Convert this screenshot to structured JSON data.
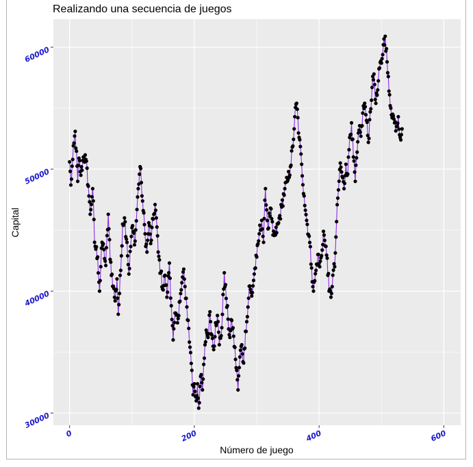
{
  "chart_data": {
    "type": "line",
    "title": "Realizando una secuencia de juegos",
    "xlabel": "Número de juego",
    "ylabel": "Capital",
    "xlim": [
      -26,
      627
    ],
    "ylim": [
      29000,
      62300
    ],
    "x_ticks": [
      0,
      200,
      400,
      600
    ],
    "y_ticks": [
      30000,
      40000,
      50000,
      60000
    ],
    "x_tick_labels": [
      "0",
      "200",
      "400",
      "600"
    ],
    "y_tick_labels": [
      "30000",
      "40000",
      "50000",
      "60000"
    ],
    "grid": true,
    "panel_color": "#ebebeb",
    "line_color": "#8a2be2",
    "point_color": "#000000",
    "tick_label_color": "#1a1acc",
    "series": [
      {
        "anchors": [
          [
            0,
            50600
          ],
          [
            2,
            48700
          ],
          [
            5,
            50800
          ],
          [
            9,
            53100
          ],
          [
            13,
            49000
          ],
          [
            15,
            50900
          ],
          [
            18,
            49500
          ],
          [
            22,
            51000
          ],
          [
            26,
            50800
          ],
          [
            30,
            48600
          ],
          [
            33,
            46300
          ],
          [
            37,
            48400
          ],
          [
            40,
            44000
          ],
          [
            45,
            42800
          ],
          [
            48,
            40000
          ],
          [
            52,
            44000
          ],
          [
            55,
            43400
          ],
          [
            58,
            42100
          ],
          [
            62,
            46300
          ],
          [
            65,
            42600
          ],
          [
            70,
            40400
          ],
          [
            73,
            39200
          ],
          [
            76,
            41000
          ],
          [
            78,
            38100
          ],
          [
            82,
            41700
          ],
          [
            85,
            45500
          ],
          [
            88,
            46000
          ],
          [
            92,
            44000
          ],
          [
            95,
            41400
          ],
          [
            100,
            45200
          ],
          [
            105,
            44100
          ],
          [
            110,
            48400
          ],
          [
            113,
            50200
          ],
          [
            115,
            48900
          ],
          [
            118,
            46600
          ],
          [
            121,
            44700
          ],
          [
            124,
            43200
          ],
          [
            127,
            45600
          ],
          [
            130,
            43900
          ],
          [
            134,
            45900
          ],
          [
            137,
            47100
          ],
          [
            139,
            46000
          ],
          [
            142,
            43200
          ],
          [
            146,
            41500
          ],
          [
            150,
            40100
          ],
          [
            153,
            41300
          ],
          [
            156,
            39500
          ],
          [
            160,
            42300
          ],
          [
            163,
            38800
          ],
          [
            166,
            36000
          ],
          [
            170,
            38200
          ],
          [
            173,
            37400
          ],
          [
            176,
            39100
          ],
          [
            179,
            40100
          ],
          [
            183,
            41800
          ],
          [
            186,
            39400
          ],
          [
            190,
            37600
          ],
          [
            193,
            35400
          ],
          [
            196,
            33500
          ],
          [
            198,
            31500
          ],
          [
            200,
            32400
          ],
          [
            203,
            31000
          ],
          [
            205,
            32400
          ],
          [
            207,
            30400
          ],
          [
            210,
            33000
          ],
          [
            213,
            31900
          ],
          [
            216,
            34500
          ],
          [
            219,
            36800
          ],
          [
            222,
            36200
          ],
          [
            225,
            38300
          ],
          [
            228,
            36400
          ],
          [
            231,
            35200
          ],
          [
            234,
            37400
          ],
          [
            237,
            38000
          ],
          [
            240,
            35600
          ],
          [
            244,
            37000
          ],
          [
            248,
            41500
          ],
          [
            251,
            39400
          ],
          [
            254,
            37700
          ],
          [
            257,
            36200
          ],
          [
            260,
            37600
          ],
          [
            263,
            36300
          ],
          [
            266,
            34400
          ],
          [
            268,
            33500
          ],
          [
            270,
            31900
          ],
          [
            273,
            34600
          ],
          [
            276,
            35600
          ],
          [
            279,
            34100
          ],
          [
            282,
            36700
          ],
          [
            285,
            37900
          ],
          [
            288,
            40400
          ],
          [
            292,
            39600
          ],
          [
            296,
            41400
          ],
          [
            300,
            42800
          ],
          [
            304,
            44700
          ],
          [
            308,
            45800
          ],
          [
            311,
            44000
          ],
          [
            314,
            48400
          ],
          [
            318,
            45100
          ],
          [
            322,
            46800
          ],
          [
            326,
            44600
          ],
          [
            330,
            44600
          ],
          [
            335,
            45600
          ],
          [
            340,
            46900
          ],
          [
            345,
            48400
          ],
          [
            350,
            49100
          ],
          [
            354,
            50200
          ],
          [
            358,
            51900
          ],
          [
            361,
            54300
          ],
          [
            364,
            55400
          ],
          [
            368,
            52600
          ],
          [
            372,
            50400
          ],
          [
            376,
            47800
          ],
          [
            380,
            45800
          ],
          [
            384,
            44500
          ],
          [
            388,
            41900
          ],
          [
            391,
            40000
          ],
          [
            395,
            41700
          ],
          [
            398,
            43000
          ],
          [
            401,
            42000
          ],
          [
            404,
            42900
          ],
          [
            407,
            44900
          ],
          [
            410,
            43700
          ],
          [
            413,
            42700
          ],
          [
            416,
            40000
          ],
          [
            419,
            39500
          ],
          [
            422,
            41300
          ],
          [
            425,
            42000
          ],
          [
            428,
            45700
          ],
          [
            431,
            48300
          ],
          [
            434,
            50500
          ],
          [
            437,
            49400
          ],
          [
            440,
            48400
          ],
          [
            443,
            50400
          ],
          [
            446,
            49600
          ],
          [
            449,
            52600
          ],
          [
            452,
            53800
          ],
          [
            455,
            51000
          ],
          [
            458,
            49000
          ],
          [
            461,
            51400
          ],
          [
            464,
            53200
          ],
          [
            467,
            52700
          ],
          [
            470,
            54600
          ],
          [
            473,
            55400
          ],
          [
            476,
            54000
          ],
          [
            479,
            52200
          ],
          [
            482,
            54700
          ],
          [
            485,
            56700
          ],
          [
            488,
            57800
          ],
          [
            491,
            55400
          ],
          [
            494,
            56500
          ],
          [
            497,
            58300
          ],
          [
            500,
            58700
          ],
          [
            503,
            60200
          ],
          [
            506,
            60900
          ],
          [
            509,
            58800
          ],
          [
            512,
            56400
          ],
          [
            515,
            55000
          ],
          [
            518,
            54500
          ],
          [
            521,
            53800
          ],
          [
            524,
            53500
          ],
          [
            527,
            54300
          ],
          [
            530,
            52600
          ],
          [
            533,
            53300
          ]
        ]
      }
    ]
  }
}
